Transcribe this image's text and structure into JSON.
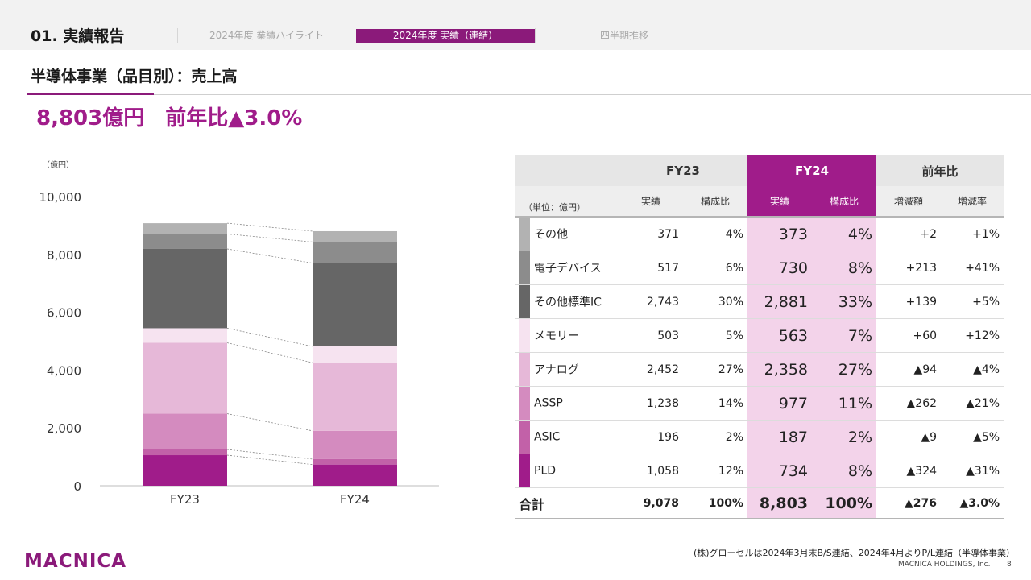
{
  "header": {
    "section_title": "01. 実績報告",
    "tabs": [
      {
        "label": "2024年度 業績ハイライト",
        "active": false
      },
      {
        "label": "2024年度 実績（連結）",
        "active": true
      },
      {
        "label": "四半期推移",
        "active": false
      }
    ]
  },
  "subtitle": "半導体事業（品目別）：売上高",
  "headline": "8,803億円　前年比▲3.0%",
  "colors": {
    "accent": "#a01c8a",
    "その他": "#b2b2b2",
    "電子デバイス": "#8c8c8c",
    "その他標準IC": "#666666",
    "メモリー": "#f6e3f0",
    "アナログ": "#e6b8d8",
    "ASSP": "#d48bbf",
    "ASIC": "#c261a8",
    "PLD": "#a01c8a"
  },
  "chart_data": {
    "type": "bar",
    "stacked": true,
    "unit": "（億円）",
    "categories": [
      "FY23",
      "FY24"
    ],
    "ylim": [
      0,
      10000
    ],
    "yticks": [
      "0",
      "2,000",
      "4,000",
      "6,000",
      "8,000",
      "10,000"
    ],
    "series": [
      {
        "name": "PLD",
        "values": [
          1058,
          734
        ]
      },
      {
        "name": "ASIC",
        "values": [
          196,
          187
        ]
      },
      {
        "name": "ASSP",
        "values": [
          1238,
          977
        ]
      },
      {
        "name": "アナログ",
        "values": [
          2452,
          2358
        ]
      },
      {
        "name": "メモリー",
        "values": [
          503,
          563
        ]
      },
      {
        "name": "その他標準IC",
        "values": [
          2743,
          2881
        ]
      },
      {
        "name": "電子デバイス",
        "values": [
          517,
          730
        ]
      },
      {
        "name": "その他",
        "values": [
          371,
          373
        ]
      }
    ]
  },
  "table": {
    "unit_label": "（単位：億円）",
    "group_headers": [
      "FY23",
      "FY24",
      "前年比"
    ],
    "sub_headers": [
      "実績",
      "構成比",
      "実績",
      "構成比",
      "増減額",
      "増減率"
    ],
    "rows": [
      {
        "name": "その他",
        "fy23": "371",
        "fy23_ratio": "4%",
        "fy24": "373",
        "fy24_ratio": "4%",
        "diff": "+2",
        "rate": "+1%"
      },
      {
        "name": "電子デバイス",
        "fy23": "517",
        "fy23_ratio": "6%",
        "fy24": "730",
        "fy24_ratio": "8%",
        "diff": "+213",
        "rate": "+41%"
      },
      {
        "name": "その他標準IC",
        "fy23": "2,743",
        "fy23_ratio": "30%",
        "fy24": "2,881",
        "fy24_ratio": "33%",
        "diff": "+139",
        "rate": "+5%"
      },
      {
        "name": "メモリー",
        "fy23": "503",
        "fy23_ratio": "5%",
        "fy24": "563",
        "fy24_ratio": "7%",
        "diff": "+60",
        "rate": "+12%"
      },
      {
        "name": "アナログ",
        "fy23": "2,452",
        "fy23_ratio": "27%",
        "fy24": "2,358",
        "fy24_ratio": "27%",
        "diff": "▲94",
        "rate": "▲4%"
      },
      {
        "name": "ASSP",
        "fy23": "1,238",
        "fy23_ratio": "14%",
        "fy24": "977",
        "fy24_ratio": "11%",
        "diff": "▲262",
        "rate": "▲21%"
      },
      {
        "name": "ASIC",
        "fy23": "196",
        "fy23_ratio": "2%",
        "fy24": "187",
        "fy24_ratio": "2%",
        "diff": "▲9",
        "rate": "▲5%"
      },
      {
        "name": "PLD",
        "fy23": "1,058",
        "fy23_ratio": "12%",
        "fy24": "734",
        "fy24_ratio": "8%",
        "diff": "▲324",
        "rate": "▲31%"
      }
    ],
    "total": {
      "name": "合計",
      "fy23": "9,078",
      "fy23_ratio": "100%",
      "fy24": "8,803",
      "fy24_ratio": "100%",
      "diff": "▲276",
      "rate": "▲3.0%"
    }
  },
  "footnote": "(株)グローセルは2024年3月末B/S連結、2024年4月よりP/L連結（半導体事業）",
  "footer": {
    "logo": "MACNICA",
    "company": "MACNICA HOLDINGS, Inc.",
    "page": "8"
  }
}
